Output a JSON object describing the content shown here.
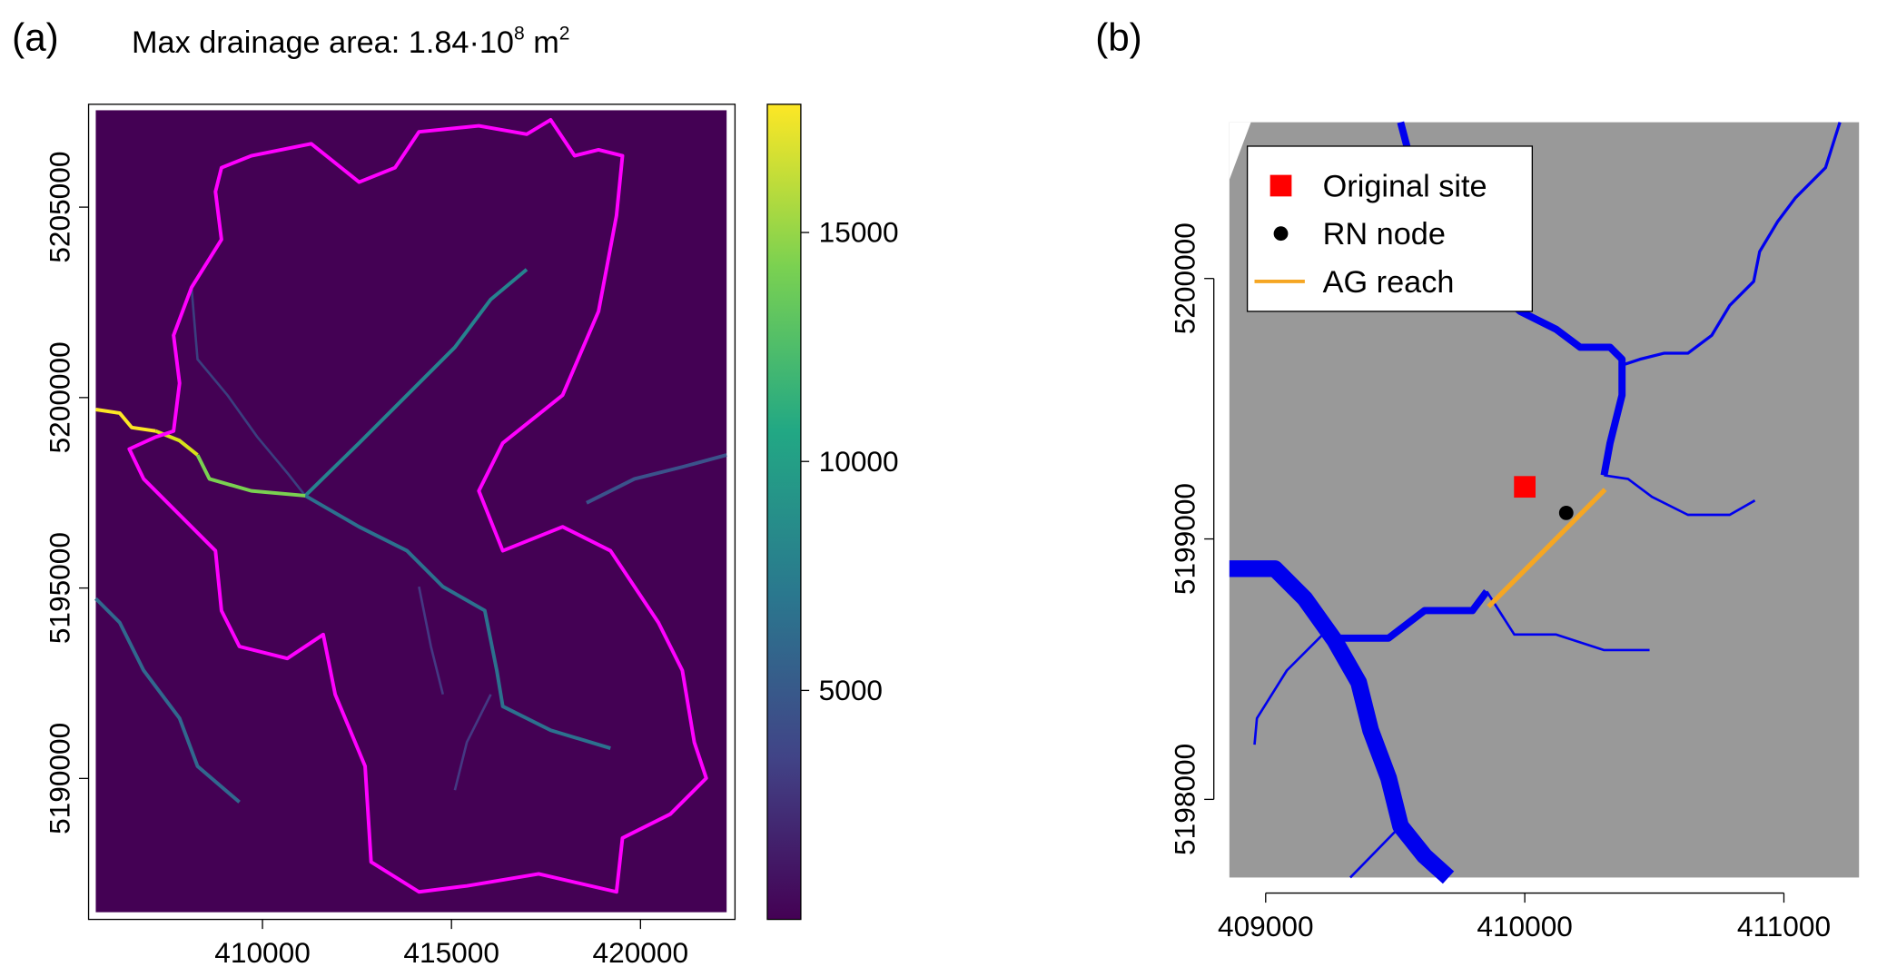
{
  "chart_data": [
    {
      "type": "raster",
      "panel_label": "(a)",
      "title": {
        "text": "Max drainage area: 1.84·10",
        "exponent": "8",
        "unit": " m",
        "unit_exponent": "2"
      },
      "xlim": [
        405400,
        422500
      ],
      "xticks": [
        410000,
        415000,
        420000
      ],
      "ylim": [
        5186300,
        5207700
      ],
      "yticks": [
        5190000,
        5195000,
        5200000,
        5205000
      ],
      "colorbar": {
        "lim": [
          0,
          17800
        ],
        "ticks": [
          5000,
          10000,
          15000
        ]
      }
    },
    {
      "type": "map",
      "panel_label": "(b)",
      "xlim": [
        408860,
        411290
      ],
      "xticks": [
        409000,
        410000,
        411000
      ],
      "ylim": [
        5197700,
        5200600
      ],
      "yticks": [
        5198000,
        5199000,
        5200000
      ],
      "series": [
        {
          "name": "Original site",
          "color": "#ff0000",
          "marker": "square",
          "x": [
            410000
          ],
          "y": [
            5199200
          ]
        },
        {
          "name": "RN node",
          "color": "#000000",
          "marker": "circle",
          "x": [
            410160
          ],
          "y": [
            5199100
          ]
        },
        {
          "name": "AG reach",
          "color": "#f5a623",
          "marker": "line",
          "x": [
            409860,
            410310
          ],
          "y": [
            5198740,
            5199190
          ]
        }
      ],
      "legend": "topleft"
    }
  ]
}
